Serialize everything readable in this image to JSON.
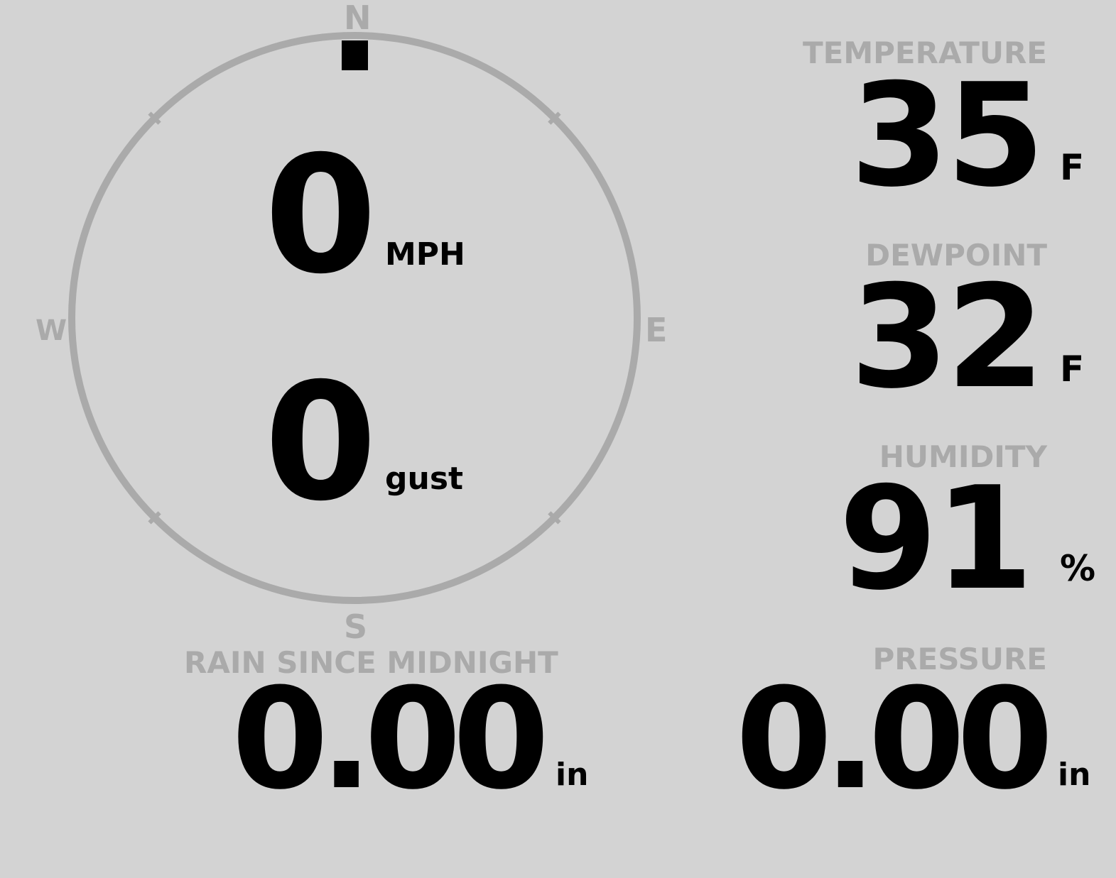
{
  "compass": {
    "north": "N",
    "east": "E",
    "south": "S",
    "west": "W",
    "wind_direction_deg": 0,
    "ring_color": "#aaaaaa",
    "marker_color": "#000000"
  },
  "wind": {
    "speed": "0",
    "speed_unit": "MPH",
    "gust": "0",
    "gust_unit": "gust"
  },
  "temperature": {
    "label": "TEMPERATURE",
    "value": "35",
    "unit": "F"
  },
  "dewpoint": {
    "label": "DEWPOINT",
    "value": "32",
    "unit": "F"
  },
  "humidity": {
    "label": "HUMIDITY",
    "value": "91",
    "unit": "%"
  },
  "rain": {
    "label": "RAIN SINCE MIDNIGHT",
    "value": "0.00",
    "unit": "in"
  },
  "pressure": {
    "label": "PRESSURE",
    "value": "0.00",
    "unit": "in"
  },
  "colors": {
    "background": "#d3d3d3",
    "label": "#aaaaaa",
    "value": "#000000"
  }
}
